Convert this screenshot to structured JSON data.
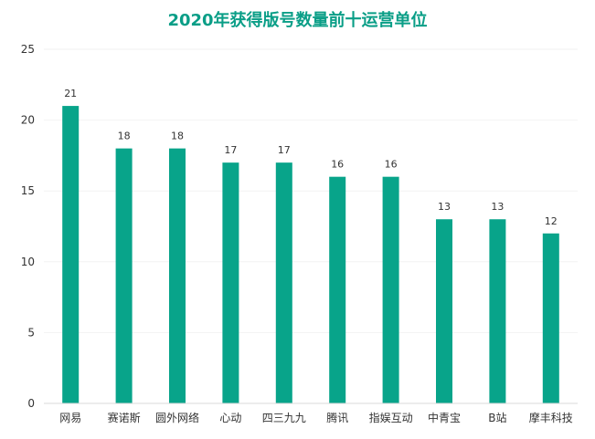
{
  "colors": {
    "bar": "#08A48A",
    "title": "#0A9E87",
    "axis": "#d9d9d9",
    "grid": "#f2f2f2",
    "text": "#333333"
  },
  "chart_data": {
    "type": "bar",
    "title": "2020年获得版号数量前十运营单位",
    "xlabel": "",
    "ylabel": "",
    "ylim": [
      0,
      25
    ],
    "yticks": [
      0,
      5,
      10,
      15,
      20,
      25
    ],
    "grid": true,
    "categories": [
      "网易",
      "赛诺斯",
      "圆外网络",
      "心动",
      "四三九九",
      "腾讯",
      "指娱互动",
      "中青宝",
      "B站",
      "摩丰科技"
    ],
    "values": [
      21,
      18,
      18,
      17,
      17,
      16,
      16,
      13,
      13,
      12
    ],
    "data_labels": [
      "21",
      "18",
      "18",
      "17",
      "17",
      "16",
      "16",
      "13",
      "13",
      "12"
    ]
  }
}
